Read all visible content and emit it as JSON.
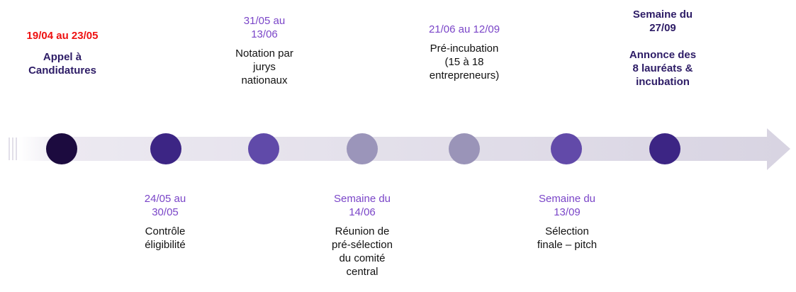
{
  "colors": {
    "dot_1": "#1c0b3f",
    "dot_2": "#3c2584",
    "dot_3": "#604aa9",
    "dot_4": "#9b95ba",
    "dot_5": "#9a94b8",
    "dot_6": "#624aa9",
    "dot_7": "#3c2584",
    "arrow_band": "#dedbe6",
    "date_accent": "#7a45c8",
    "highlight_red": "#ee1111",
    "title_dark": "#2d1c66"
  },
  "milestones": [
    {
      "date": "19/04 au 23/05",
      "label": "Appel à\nCandidatures",
      "position": "above"
    },
    {
      "date": "24/05 au\n30/05",
      "label": "Contrôle\néligibilité",
      "position": "below"
    },
    {
      "date": "31/05 au\n13/06",
      "label": "Notation par\njurys\nnationaux",
      "position": "above"
    },
    {
      "date": "Semaine du\n14/06",
      "label": "Réunion de\npré-sélection\ndu comité\ncentral",
      "position": "below"
    },
    {
      "date": "21/06 au 12/09",
      "label": "Pré-incubation\n(15 à 18\nentrepreneurs)",
      "position": "above"
    },
    {
      "date": "Semaine du\n13/09",
      "label": "Sélection\nfinale – pitch",
      "position": "below"
    },
    {
      "date": "Semaine du\n27/09",
      "label": "Annonce des\n8 lauréats &\nincubation",
      "position": "above"
    }
  ]
}
